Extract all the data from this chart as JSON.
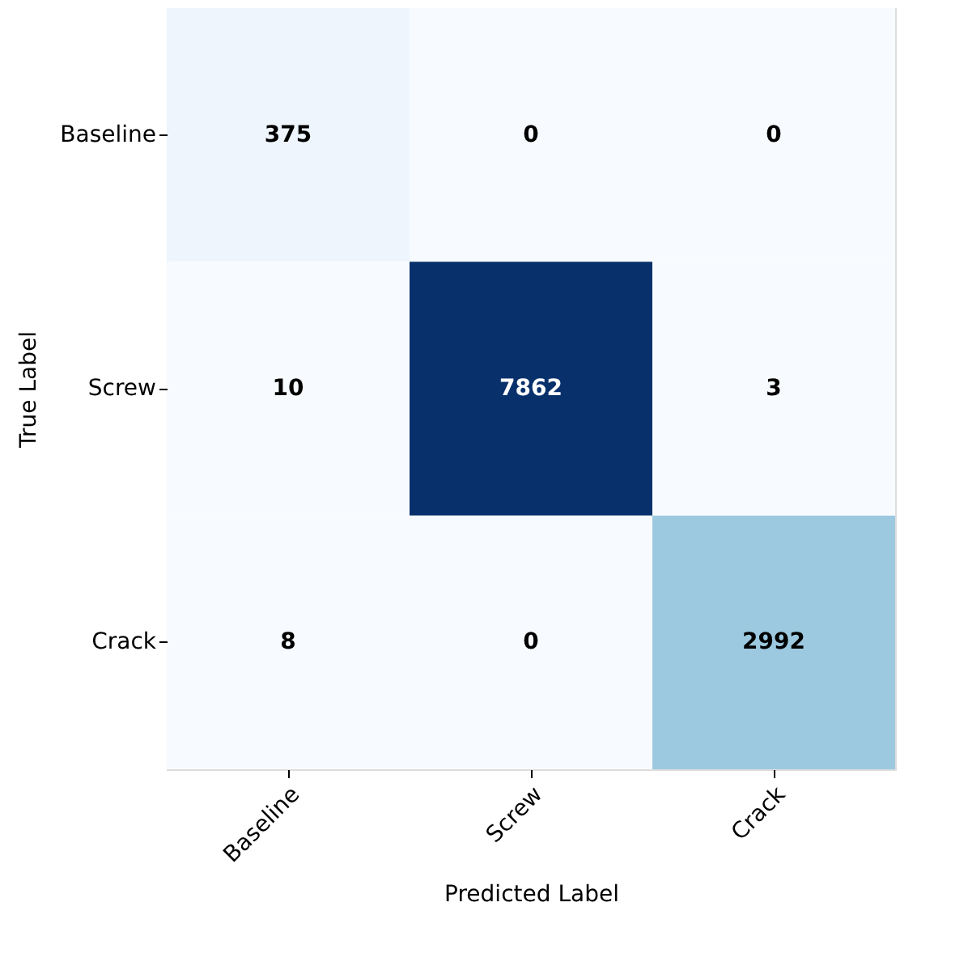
{
  "chart_data": {
    "type": "heatmap",
    "xlabel": "Predicted Label",
    "ylabel": "True Label",
    "categories": [
      "Baseline",
      "Screw",
      "Crack"
    ],
    "y_categories": [
      "Baseline",
      "Screw",
      "Crack"
    ],
    "cells": [
      [
        375,
        0,
        0
      ],
      [
        10,
        7862,
        3
      ],
      [
        8,
        0,
        2992
      ]
    ],
    "data_labels": true,
    "legend": false,
    "grid": false
  }
}
